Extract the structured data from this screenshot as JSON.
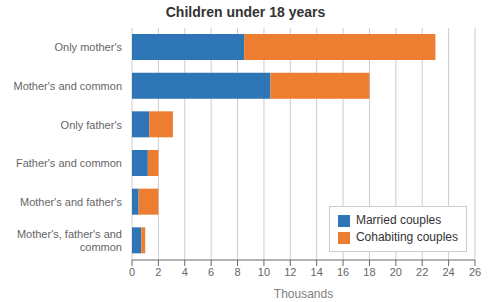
{
  "chart_data": {
    "type": "bar",
    "title": "Children under 18 years",
    "xlabel": "Thousands",
    "orientation": "horizontal",
    "stacked": true,
    "categories": [
      "Only mother's",
      "Mother's and common",
      "Only father's",
      "Father's and common",
      "Mother's and father's",
      "Mother's, father's and\ncommon"
    ],
    "series": [
      {
        "name": "Married couples",
        "color": "#2e75b6",
        "values": [
          8.5,
          10.5,
          1.3,
          1.2,
          0.5,
          0.7
        ]
      },
      {
        "name": "Cohabiting couples",
        "color": "#ed7d31",
        "values": [
          14.5,
          7.5,
          1.8,
          0.8,
          1.5,
          0.3
        ]
      }
    ],
    "xlim": [
      0,
      26
    ],
    "xticks": [
      0,
      2,
      4,
      6,
      8,
      10,
      12,
      14,
      16,
      18,
      20,
      22,
      24,
      26
    ],
    "grid": true,
    "legend": "lower right"
  }
}
